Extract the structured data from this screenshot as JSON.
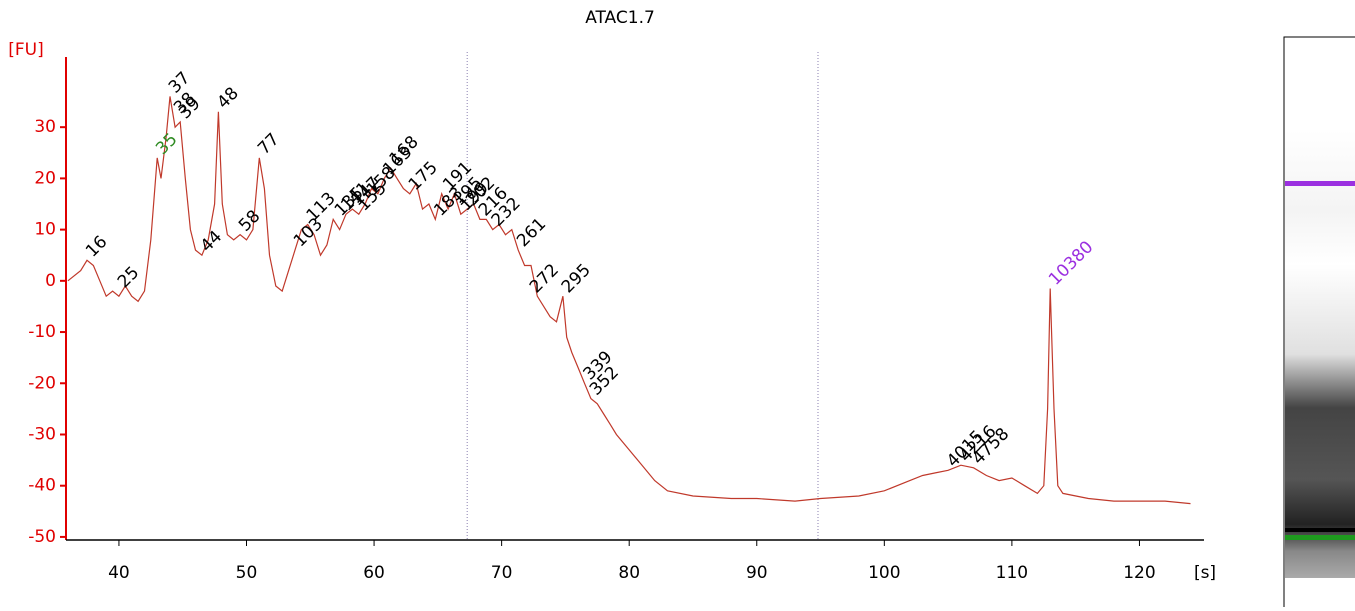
{
  "chart_data": {
    "type": "line",
    "title": "ATAC1.7",
    "y_label": "[FU]",
    "x_label": "[s]",
    "xlim": [
      35.85,
      125.06
    ],
    "ylim": [
      -50.6,
      43.7
    ],
    "xticks": [
      40,
      50,
      60,
      70,
      80,
      90,
      100,
      110,
      120
    ],
    "yticks": [
      -50,
      -40,
      -30,
      -20,
      -10,
      0,
      10,
      20,
      30
    ],
    "color": "#c0392b",
    "axis_color": "#e00000",
    "reference_lines": [
      67.3,
      94.8
    ],
    "x": [
      36,
      37,
      37.5,
      38,
      38.5,
      39,
      39.5,
      40,
      40.5,
      41,
      41.5,
      42,
      42.5,
      43,
      43.3,
      43.7,
      44,
      44.4,
      44.8,
      45.2,
      45.6,
      46,
      46.5,
      47,
      47.5,
      47.8,
      48.1,
      48.5,
      49,
      49.5,
      50,
      50.5,
      51,
      51.4,
      51.8,
      52.3,
      52.8,
      53.3,
      53.8,
      54.3,
      54.8,
      55.3,
      55.8,
      56.3,
      56.8,
      57.3,
      57.8,
      58.3,
      58.8,
      59.3,
      59.8,
      60.3,
      60.8,
      61.3,
      61.8,
      62.3,
      62.8,
      63.3,
      63.8,
      64.3,
      64.8,
      65.3,
      65.8,
      66.3,
      66.8,
      67.3,
      67.8,
      68.3,
      68.8,
      69.3,
      69.8,
      70.3,
      70.8,
      71.3,
      71.8,
      72.3,
      72.8,
      73.3,
      73.8,
      74.3,
      74.8,
      75.1,
      75.5,
      76,
      76.5,
      77,
      77.5,
      78,
      78.5,
      79,
      80,
      81,
      82,
      83,
      85,
      88,
      90,
      93,
      95,
      98,
      100,
      102,
      103,
      104,
      105,
      106,
      107,
      108,
      109,
      110,
      111,
      112,
      112.5,
      112.8,
      113,
      113.3,
      113.6,
      114,
      116,
      118,
      120,
      122,
      124
    ],
    "values": [
      0,
      2,
      4,
      3,
      0,
      -3,
      -2,
      -3,
      -1,
      -3,
      -4,
      -2,
      8,
      24,
      20,
      28,
      36,
      30,
      31,
      20,
      10,
      6,
      5,
      8,
      15,
      33,
      15,
      9,
      8,
      9,
      8,
      10,
      24,
      18,
      5,
      -1,
      -2,
      2,
      6,
      10,
      11,
      9,
      5,
      7,
      12,
      10,
      13,
      14,
      13,
      15,
      18,
      17,
      20,
      22,
      20,
      18,
      17,
      19,
      14,
      15,
      12,
      17,
      14,
      17,
      13,
      14,
      15,
      12,
      12,
      10,
      11,
      9,
      10,
      6,
      3,
      3,
      -3,
      -5,
      -7,
      -8,
      -3,
      -11,
      -14,
      -17,
      -20,
      -23,
      -24,
      -26,
      -28,
      -30,
      -33,
      -36,
      -39,
      -41,
      -42,
      -42.5,
      -42.5,
      -43,
      -42.5,
      -42,
      -41,
      -39,
      -38,
      -37.5,
      -37,
      -36,
      -36.5,
      -38,
      -39,
      -38.5,
      -40,
      -41.5,
      -40,
      -25,
      -1.5,
      -25,
      -40,
      -41.5,
      -42.5,
      -43,
      -43,
      -43,
      -43.5
    ],
    "annotations": [
      {
        "text": "16",
        "x": 37.5,
        "y": 4,
        "color": "#000"
      },
      {
        "text": "25",
        "x": 40,
        "y": -2,
        "color": "#000"
      },
      {
        "text": "35",
        "x": 43.0,
        "y": 24,
        "color": "#2e8b22"
      },
      {
        "text": "37",
        "x": 44.0,
        "y": 36,
        "color": "#000"
      },
      {
        "text": "38",
        "x": 44.4,
        "y": 32,
        "color": "#000"
      },
      {
        "text": "39",
        "x": 44.8,
        "y": 31,
        "color": "#000"
      },
      {
        "text": "44",
        "x": 46.5,
        "y": 5,
        "color": "#000"
      },
      {
        "text": "48",
        "x": 47.8,
        "y": 33,
        "color": "#000"
      },
      {
        "text": "58",
        "x": 49.5,
        "y": 9,
        "color": "#000"
      },
      {
        "text": "77",
        "x": 51.0,
        "y": 24,
        "color": "#000"
      },
      {
        "text": "103",
        "x": 53.8,
        "y": 6,
        "color": "#000"
      },
      {
        "text": "113",
        "x": 54.8,
        "y": 11,
        "color": "#000"
      },
      {
        "text": "135",
        "x": 57.0,
        "y": 12,
        "color": "#000"
      },
      {
        "text": "141",
        "x": 57.5,
        "y": 13,
        "color": "#000"
      },
      {
        "text": "147",
        "x": 58.3,
        "y": 14,
        "color": "#000"
      },
      {
        "text": "155",
        "x": 58.8,
        "y": 13,
        "color": "#000"
      },
      {
        "text": "158",
        "x": 59.5,
        "y": 16,
        "color": "#000"
      },
      {
        "text": "163",
        "x": 60.8,
        "y": 20,
        "color": "#000"
      },
      {
        "text": "168",
        "x": 61.3,
        "y": 22,
        "color": "#000"
      },
      {
        "text": "175",
        "x": 62.8,
        "y": 17,
        "color": "#000"
      },
      {
        "text": "183",
        "x": 64.8,
        "y": 12,
        "color": "#000"
      },
      {
        "text": "191",
        "x": 65.5,
        "y": 17,
        "color": "#000"
      },
      {
        "text": "195",
        "x": 66.3,
        "y": 14,
        "color": "#000"
      },
      {
        "text": "199",
        "x": 66.8,
        "y": 13,
        "color": "#000"
      },
      {
        "text": "202",
        "x": 67.3,
        "y": 14,
        "color": "#000"
      },
      {
        "text": "216",
        "x": 68.3,
        "y": 12,
        "color": "#000"
      },
      {
        "text": "232",
        "x": 69.3,
        "y": 10,
        "color": "#000"
      },
      {
        "text": "261",
        "x": 71.3,
        "y": 6,
        "color": "#000"
      },
      {
        "text": "272",
        "x": 72.3,
        "y": -3,
        "color": "#000"
      },
      {
        "text": "295",
        "x": 74.8,
        "y": -3,
        "color": "#000"
      },
      {
        "text": "339",
        "x": 76.5,
        "y": -20,
        "color": "#000"
      },
      {
        "text": "352",
        "x": 77.0,
        "y": -23,
        "color": "#000"
      },
      {
        "text": "4015",
        "x": 105.0,
        "y": -37,
        "color": "#000"
      },
      {
        "text": "4216",
        "x": 106.0,
        "y": -36,
        "color": "#000"
      },
      {
        "text": "4758",
        "x": 107.0,
        "y": -36.5,
        "color": "#000"
      },
      {
        "text": "10380",
        "x": 113.0,
        "y": -1.5,
        "color": "#9b30e0"
      }
    ]
  }
}
